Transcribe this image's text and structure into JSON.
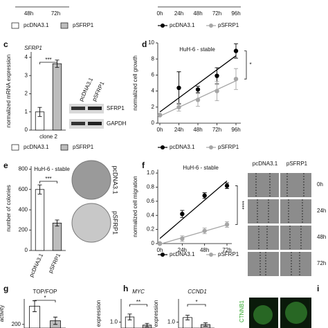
{
  "chart_data": [
    {
      "type": "bar",
      "categories": [
        "48h",
        "72h"
      ],
      "series": [
        {
          "name": "pcDNA3.1",
          "color": "#ffffff"
        },
        {
          "name": "pSFRP1",
          "color": "#bdbdbd"
        }
      ]
    },
    {
      "type": "line",
      "xlim": [
        0,
        96
      ],
      "xticks": [
        {
          "value": 0,
          "label": "0h"
        },
        {
          "value": 24,
          "label": "24h"
        },
        {
          "value": 48,
          "label": "48h"
        },
        {
          "value": 72,
          "label": "72h"
        },
        {
          "value": 96,
          "label": "96h"
        }
      ],
      "series": [
        {
          "name": "pcDNA3.1",
          "color": "#000000"
        },
        {
          "name": "pSFRP1",
          "color": "#a6a6a6"
        }
      ]
    },
    {
      "type": "bar",
      "panel": "c",
      "title": "SFRP1",
      "ylabel": "normalized mRNA expression",
      "categories": [
        "clone 2"
      ],
      "series": [
        {
          "name": "pcDNA3.1",
          "color": "#ffffff",
          "values": [
            1.0
          ],
          "errors": [
            0.25
          ]
        },
        {
          "name": "pSFRP1",
          "color": "#bdbdbd",
          "values": [
            3.65
          ],
          "errors": [
            0.2
          ]
        }
      ],
      "ylim": [
        0,
        4.3
      ],
      "yticks": [
        0,
        1,
        2,
        3,
        4
      ],
      "significance": "***",
      "blot": {
        "lanes": [
          "pcDNA3.1",
          "pSFRP1"
        ],
        "bands": [
          "SFRP1",
          "GAPDH"
        ]
      }
    },
    {
      "type": "line",
      "panel": "d",
      "title": "HuH-6 - stable",
      "ylabel": "normalized cell growth",
      "x": [
        0,
        24,
        48,
        72,
        96
      ],
      "xlim": [
        0,
        96
      ],
      "xticks": [
        {
          "value": 0,
          "label": "0h"
        },
        {
          "value": 24,
          "label": "24h"
        },
        {
          "value": 48,
          "label": "48h"
        },
        {
          "value": 72,
          "label": "72h"
        },
        {
          "value": 96,
          "label": "96h"
        }
      ],
      "ylim": [
        0,
        10
      ],
      "yticks": [
        0,
        2,
        4,
        6,
        8,
        10
      ],
      "series": [
        {
          "name": "pcDNA3.1",
          "color": "#000000",
          "values": [
            1,
            4.4,
            4.2,
            5.9,
            9.0
          ],
          "errors": [
            0,
            2.0,
            0.4,
            1.0,
            0.9
          ]
        },
        {
          "name": "pSFRP1",
          "color": "#a6a6a6",
          "values": [
            1,
            2.0,
            2.9,
            4.0,
            5.5
          ],
          "errors": [
            0,
            0.5,
            0.8,
            1.2,
            1.3
          ]
        }
      ],
      "significance": "*"
    },
    {
      "type": "bar",
      "panel": "e",
      "title": "HuH-6 - stable",
      "ylabel": "number of colonies",
      "categories": [
        "pcDNA3.1",
        "pSFRP1"
      ],
      "values": [
        600,
        270
      ],
      "errors": [
        45,
        30
      ],
      "colors": [
        "#ffffff",
        "#bdbdbd"
      ],
      "ylim": [
        0,
        830
      ],
      "yticks": [
        0,
        200,
        400,
        600,
        800
      ],
      "significance": "***",
      "images": [
        "pcDNA3.1",
        "pSFRP1"
      ]
    },
    {
      "type": "line",
      "panel": "f",
      "title": "HuH-6 - stable",
      "ylabel": "normalized cell migration",
      "x": [
        0,
        24,
        48,
        72
      ],
      "xlim": [
        0,
        72
      ],
      "xticks": [
        {
          "value": 0,
          "label": "0h"
        },
        {
          "value": 24,
          "label": "24h"
        },
        {
          "value": 48,
          "label": "48h"
        },
        {
          "value": 72,
          "label": "72h"
        }
      ],
      "ylim": [
        0,
        1.05
      ],
      "yticks": [
        0,
        0.2,
        0.4,
        0.6,
        0.8,
        {
          "value": 1,
          "label": "1.0"
        }
      ],
      "series": [
        {
          "name": "pcDNA3.1",
          "color": "#000000",
          "values": [
            0,
            0.42,
            0.68,
            0.82
          ],
          "errors": [
            0,
            0.05,
            0.04,
            0.04
          ]
        },
        {
          "name": "pSFRP1",
          "color": "#a6a6a6",
          "values": [
            0,
            0.07,
            0.18,
            0.27
          ],
          "errors": [
            0,
            0.04,
            0.04,
            0.04
          ]
        }
      ],
      "significance": "****",
      "images": {
        "columns": [
          "pcDNA3.1",
          "pSFRP1"
        ],
        "rows": [
          "0h",
          "24h",
          "48h",
          "72h"
        ]
      }
    },
    {
      "type": "bar",
      "panel": "g",
      "title": "TOP/FOP",
      "ylabel": "activity",
      "values": [
        250,
        210
      ],
      "errors": [
        15,
        10
      ],
      "colors": [
        "#ffffff",
        "#bdbdbd"
      ],
      "ylim": [
        190,
        270
      ],
      "yticks": [
        200
      ],
      "significance": "*"
    },
    {
      "type": "bar",
      "panel": "h",
      "title": "MYC",
      "ylabel": "expression",
      "values": [
        1.09,
        0.95
      ],
      "errors": [
        0.05,
        0.03
      ],
      "colors": [
        "#ffffff",
        "#bdbdbd"
      ],
      "ylim": [
        0.9,
        1.4
      ],
      "yticks": [
        {
          "value": 1,
          "label": "1.0"
        }
      ],
      "significance": "**"
    },
    {
      "type": "bar",
      "title": "CCND1",
      "ylabel": "expression",
      "values": [
        1.08,
        0.96
      ],
      "errors": [
        0.04,
        0.03
      ],
      "colors": [
        "#ffffff",
        "#bdbdbd"
      ],
      "ylim": [
        0.9,
        1.4
      ],
      "yticks": [
        {
          "value": 1,
          "label": "1.0"
        }
      ],
      "significance": "*"
    }
  ],
  "panel_i": {
    "panel": "i",
    "label": "CTNNB1"
  }
}
